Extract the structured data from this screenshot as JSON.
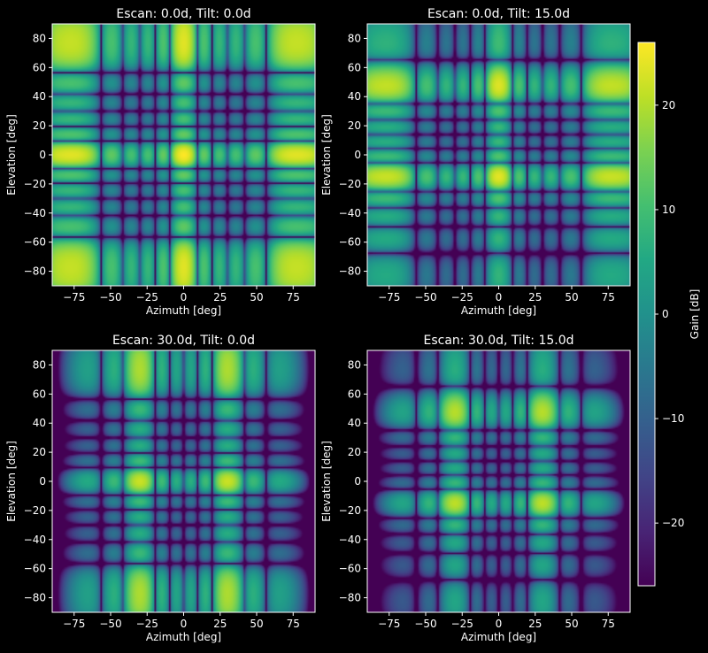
{
  "chart_data": [
    {
      "type": "heatmap",
      "title": "Escan: 0.0d, Tilt: 0.0d",
      "xlabel": "Azimuth [deg]",
      "ylabel": "Elevation [deg]",
      "xlim": [
        -90,
        90
      ],
      "ylim": [
        -90,
        90
      ],
      "xticks": [
        -75,
        -50,
        -25,
        0,
        25,
        50,
        75
      ],
      "yticks": [
        -80,
        -60,
        -40,
        -20,
        0,
        20,
        40,
        60,
        80
      ],
      "x_tick_labels": [
        "−75",
        "−50",
        "−25",
        "0",
        "25",
        "50",
        "75"
      ],
      "y_tick_labels": [
        "−80",
        "−60",
        "−40",
        "−20",
        "0",
        "20",
        "40",
        "60",
        "80"
      ],
      "beam_peak": {
        "azimuth": 0,
        "elevation": 0
      },
      "peak_gain": 26
    },
    {
      "type": "heatmap",
      "title": "Escan: 0.0d, Tilt: 15.0d",
      "xlabel": "Azimuth [deg]",
      "ylabel": "Elevation [deg]",
      "xlim": [
        -90,
        90
      ],
      "ylim": [
        -90,
        90
      ],
      "xticks": [
        -75,
        -50,
        -25,
        0,
        25,
        50,
        75
      ],
      "yticks": [
        -80,
        -60,
        -40,
        -20,
        0,
        20,
        40,
        60,
        80
      ],
      "x_tick_labels": [
        "−75",
        "−50",
        "−25",
        "0",
        "25",
        "50",
        "75"
      ],
      "y_tick_labels": [
        "−80",
        "−60",
        "−40",
        "−20",
        "0",
        "20",
        "40",
        "60",
        "80"
      ],
      "beam_peak": {
        "azimuth": 0,
        "elevation": -15
      },
      "peak_gain": 24
    },
    {
      "type": "heatmap",
      "title": "Escan: 30.0d, Tilt: 0.0d",
      "xlabel": "Azimuth [deg]",
      "ylabel": "Elevation [deg]",
      "xlim": [
        -90,
        90
      ],
      "ylim": [
        -90,
        90
      ],
      "xticks": [
        -75,
        -50,
        -25,
        0,
        25,
        50,
        75
      ],
      "yticks": [
        -80,
        -60,
        -40,
        -20,
        0,
        20,
        40,
        60,
        80
      ],
      "x_tick_labels": [
        "−75",
        "−50",
        "−25",
        "0",
        "25",
        "50",
        "75"
      ],
      "y_tick_labels": [
        "−80",
        "−60",
        "−40",
        "−20",
        "0",
        "20",
        "40",
        "60",
        "80"
      ],
      "beam_peak": {
        "azimuth": -30,
        "elevation": 0
      },
      "peak_gain": 22
    },
    {
      "type": "heatmap",
      "title": "Escan: 30.0d, Tilt: 15.0d",
      "xlabel": "Azimuth [deg]",
      "ylabel": "Elevation [deg]",
      "xlim": [
        -90,
        90
      ],
      "ylim": [
        -90,
        90
      ],
      "xticks": [
        -75,
        -50,
        -25,
        0,
        25,
        50,
        75
      ],
      "yticks": [
        -80,
        -60,
        -40,
        -20,
        0,
        20,
        40,
        60,
        80
      ],
      "x_tick_labels": [
        "−75",
        "−50",
        "−25",
        "0",
        "25",
        "50",
        "75"
      ],
      "y_tick_labels": [
        "−80",
        "−60",
        "−40",
        "−20",
        "0",
        "20",
        "40",
        "60",
        "80"
      ],
      "beam_peak": {
        "azimuth": -30,
        "elevation": -15
      },
      "peak_gain": 21
    }
  ],
  "colorbar": {
    "label": "Gain [dB]",
    "range": [
      -26,
      26
    ],
    "ticks": [
      -20,
      -10,
      0,
      10,
      20
    ],
    "tick_labels": [
      "−20",
      "−10",
      "0",
      "10",
      "20"
    ],
    "colormap": "viridis",
    "floor_color": "#440154",
    "peak_color": "#fde725"
  }
}
